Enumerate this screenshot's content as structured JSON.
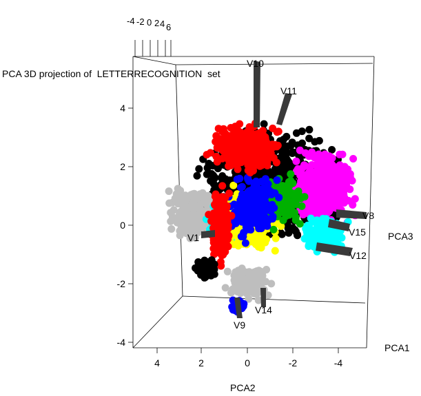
{
  "chart_data": {
    "type": "scatter",
    "title": "PCA 3D projection of  LETTERRECOGNITION  set",
    "axes": {
      "pca1": {
        "label": "PCA1",
        "ticks": [
          "-4",
          "-2",
          "0",
          "2",
          "4",
          "6"
        ]
      },
      "pca2": {
        "label": "PCA2",
        "ticks": [
          "4",
          "2",
          "0",
          "-2",
          "-4"
        ]
      },
      "pca3": {
        "label": "PCA3",
        "ticks": [
          "4",
          "2",
          "0",
          "-2",
          "-4"
        ]
      }
    },
    "point_colors": [
      "#000000",
      "#ff0000",
      "#bebebe",
      "#00ffff",
      "#ff00ff",
      "#0000ff",
      "#ffff00",
      "#00b000"
    ],
    "loading_labels": [
      "V10",
      "V11",
      "V8",
      "V15",
      "V12",
      "V1",
      "V14",
      "V9"
    ]
  }
}
